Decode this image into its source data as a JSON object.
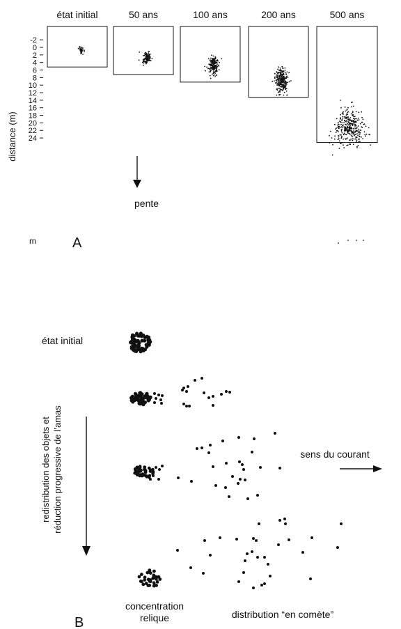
{
  "panelA": {
    "letter": "A",
    "y_axis_label": "distance (m)",
    "y_unit": "m",
    "y_ticks": [
      "-2",
      "0",
      "2",
      "4",
      "6",
      "8",
      "10",
      "12",
      "14",
      "16",
      "18",
      "20",
      "22",
      "24"
    ],
    "boxes": [
      {
        "title": "état initial",
        "max_depth": 5.2
      },
      {
        "title": "50 ans",
        "max_depth": 7.2
      },
      {
        "title": "100 ans",
        "max_depth": 9.2
      },
      {
        "title": "200 ans",
        "max_depth": 13.2
      },
      {
        "title": "500 ans",
        "max_depth": 25.2
      }
    ],
    "slope_label": "pente"
  },
  "panelB": {
    "letter": "B",
    "initial_state_label": "état initial",
    "vertical_label_line1": "redistribution des objets et",
    "vertical_label_line2": "réduction progressive de l’amas",
    "current_label": "sens du courant",
    "relic_label_line1": "concentration",
    "relic_label_line2": "relique",
    "comet_label": "distribution “en comète”"
  }
}
